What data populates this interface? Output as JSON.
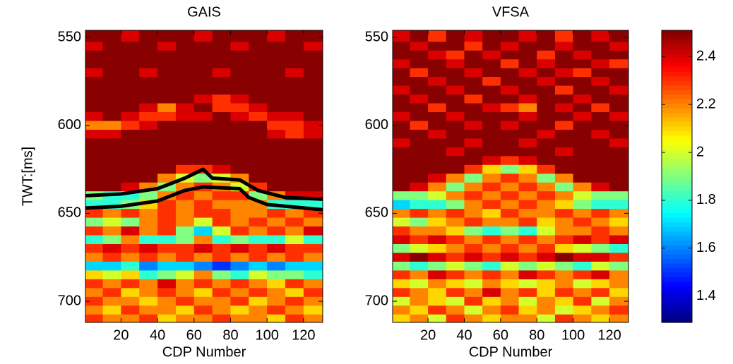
{
  "chart_data": [
    {
      "type": "heatmap",
      "title": "GAIS",
      "ylabel": "TWT:[ms]",
      "xlabel": "CDP Number",
      "colormap": "jet",
      "clim": [
        1.29,
        2.51
      ],
      "xlim": [
        0.5,
        130.5
      ],
      "ylim": [
        546,
        712
      ],
      "yreverse": true,
      "xticks": [
        20,
        40,
        60,
        80,
        100,
        120
      ],
      "yticks": [
        550,
        600,
        650,
        700
      ],
      "x": [
        5,
        15,
        25,
        35,
        45,
        55,
        65,
        75,
        85,
        95,
        105,
        115,
        125
      ],
      "y": [
        550,
        555,
        560,
        565,
        570,
        575,
        580,
        585,
        590,
        595,
        600,
        605,
        610,
        615,
        620,
        625,
        630,
        635,
        640,
        645,
        650,
        655,
        660,
        665,
        670,
        675,
        680,
        685,
        690,
        695,
        700,
        705,
        710
      ],
      "z": [
        [
          2.5,
          2.5,
          2.4,
          2.5,
          2.5,
          2.5,
          2.4,
          2.5,
          2.5,
          2.5,
          2.4,
          2.5,
          2.5
        ],
        [
          2.4,
          2.5,
          2.5,
          2.5,
          2.4,
          2.5,
          2.5,
          2.5,
          2.4,
          2.5,
          2.5,
          2.5,
          2.4
        ],
        [
          2.5,
          2.5,
          2.5,
          2.5,
          2.5,
          2.5,
          2.5,
          2.5,
          2.5,
          2.5,
          2.5,
          2.5,
          2.5
        ],
        [
          2.5,
          2.5,
          2.5,
          2.5,
          2.5,
          2.5,
          2.5,
          2.5,
          2.5,
          2.5,
          2.5,
          2.5,
          2.5
        ],
        [
          2.4,
          2.5,
          2.5,
          2.4,
          2.5,
          2.5,
          2.5,
          2.4,
          2.5,
          2.5,
          2.5,
          2.4,
          2.5
        ],
        [
          2.5,
          2.5,
          2.5,
          2.5,
          2.5,
          2.5,
          2.5,
          2.5,
          2.5,
          2.5,
          2.5,
          2.5,
          2.5
        ],
        [
          2.5,
          2.5,
          2.5,
          2.5,
          2.5,
          2.5,
          2.5,
          2.5,
          2.5,
          2.5,
          2.5,
          2.5,
          2.5
        ],
        [
          2.5,
          2.5,
          2.5,
          2.5,
          2.5,
          2.5,
          2.4,
          2.3,
          2.4,
          2.5,
          2.5,
          2.5,
          2.5
        ],
        [
          2.5,
          2.5,
          2.5,
          2.4,
          2.2,
          2.4,
          2.5,
          2.3,
          2.3,
          2.4,
          2.5,
          2.5,
          2.5
        ],
        [
          2.4,
          2.5,
          2.4,
          2.3,
          2.3,
          2.4,
          2.4,
          2.5,
          2.4,
          2.3,
          2.4,
          2.4,
          2.5
        ],
        [
          2.2,
          2.2,
          2.3,
          2.4,
          2.5,
          2.5,
          2.5,
          2.5,
          2.5,
          2.5,
          2.3,
          2.3,
          2.4
        ],
        [
          2.4,
          2.4,
          2.5,
          2.5,
          2.5,
          2.5,
          2.5,
          2.5,
          2.5,
          2.5,
          2.4,
          2.3,
          2.4
        ],
        [
          2.5,
          2.5,
          2.5,
          2.5,
          2.5,
          2.5,
          2.5,
          2.5,
          2.5,
          2.5,
          2.5,
          2.5,
          2.5
        ],
        [
          2.5,
          2.5,
          2.5,
          2.5,
          2.5,
          2.5,
          2.5,
          2.5,
          2.5,
          2.5,
          2.5,
          2.5,
          2.5
        ],
        [
          2.5,
          2.5,
          2.5,
          2.5,
          2.5,
          2.5,
          2.5,
          2.5,
          2.5,
          2.5,
          2.5,
          2.5,
          2.5
        ],
        [
          2.5,
          2.5,
          2.5,
          2.5,
          2.5,
          2.3,
          2.3,
          2.4,
          2.5,
          2.5,
          2.5,
          2.5,
          2.5
        ],
        [
          2.5,
          2.5,
          2.5,
          2.5,
          2.2,
          2.0,
          1.9,
          2.0,
          2.2,
          2.5,
          2.5,
          2.5,
          2.5
        ],
        [
          2.5,
          2.5,
          2.4,
          2.2,
          1.9,
          2.2,
          2.3,
          2.2,
          2.0,
          2.3,
          2.5,
          2.5,
          2.5
        ],
        [
          1.9,
          1.8,
          1.8,
          1.9,
          2.2,
          2.3,
          2.2,
          2.3,
          2.3,
          1.9,
          2.2,
          2.4,
          2.4
        ],
        [
          1.8,
          1.8,
          1.9,
          2.1,
          2.3,
          2.2,
          2.3,
          2.2,
          2.2,
          2.2,
          1.8,
          1.8,
          1.8
        ],
        [
          2.3,
          2.2,
          2.3,
          2.2,
          2.3,
          2.2,
          2.3,
          2.3,
          2.2,
          2.2,
          2.3,
          2.2,
          2.3
        ],
        [
          1.9,
          2.0,
          1.9,
          2.2,
          2.3,
          2.2,
          2.0,
          2.3,
          2.2,
          2.3,
          2.2,
          2.3,
          2.2
        ],
        [
          2.3,
          2.2,
          2.4,
          2.2,
          2.3,
          1.9,
          1.7,
          2.0,
          2.3,
          2.2,
          2.3,
          2.2,
          2.4
        ],
        [
          1.8,
          1.9,
          2.2,
          1.8,
          1.8,
          1.9,
          2.2,
          1.8,
          1.9,
          1.8,
          1.8,
          2.0,
          1.8
        ],
        [
          2.3,
          2.4,
          2.3,
          2.4,
          2.3,
          2.3,
          2.4,
          2.3,
          2.4,
          2.3,
          2.4,
          2.3,
          2.3
        ],
        [
          2.2,
          2.3,
          2.2,
          2.3,
          2.2,
          2.3,
          2.2,
          2.3,
          2.2,
          2.3,
          2.2,
          2.3,
          2.2
        ],
        [
          1.7,
          1.7,
          1.8,
          1.6,
          1.7,
          1.7,
          1.6,
          1.5,
          1.6,
          1.7,
          1.6,
          1.7,
          1.7
        ],
        [
          2.1,
          2.0,
          2.1,
          1.8,
          1.9,
          2.0,
          2.2,
          1.9,
          1.8,
          2.0,
          1.9,
          1.9,
          1.8
        ],
        [
          2.3,
          2.2,
          2.3,
          2.2,
          2.4,
          2.2,
          2.3,
          2.2,
          2.3,
          2.2,
          2.1,
          2.3,
          2.2
        ],
        [
          2.2,
          2.3,
          2.1,
          2.2,
          2.3,
          2.2,
          2.1,
          2.3,
          2.2,
          2.3,
          2.2,
          2.1,
          2.3
        ],
        [
          2.3,
          2.2,
          2.2,
          2.1,
          2.2,
          2.3,
          2.2,
          2.2,
          2.3,
          2.1,
          2.2,
          2.3,
          2.2
        ],
        [
          2.2,
          2.1,
          2.3,
          2.2,
          2.2,
          2.1,
          2.3,
          2.2,
          2.1,
          2.2,
          2.3,
          2.2,
          2.1
        ],
        [
          2.3,
          2.2,
          2.2,
          2.3,
          2.1,
          2.2,
          2.2,
          2.3,
          2.2,
          2.2,
          2.1,
          2.3,
          2.2
        ]
      ],
      "lines": [
        {
          "color": "#000000",
          "x": [
            0.5,
            20,
            40,
            55,
            65,
            70,
            85,
            95,
            110,
            130.5
          ],
          "y": [
            640,
            639,
            636,
            630,
            625,
            630,
            631,
            637,
            641,
            642
          ]
        },
        {
          "color": "#000000",
          "x": [
            0.5,
            20,
            40,
            55,
            65,
            85,
            90,
            100,
            130.5
          ],
          "y": [
            647,
            646,
            643,
            637,
            635,
            636,
            641,
            645,
            648
          ]
        }
      ]
    },
    {
      "type": "heatmap",
      "title": "VFSA",
      "xlabel": "CDP Number",
      "colormap": "jet",
      "clim": [
        1.29,
        2.51
      ],
      "xlim": [
        0.5,
        130.5
      ],
      "ylim": [
        546,
        712
      ],
      "yreverse": true,
      "xticks": [
        20,
        40,
        60,
        80,
        100,
        120
      ],
      "yticks": [
        550,
        600,
        650,
        700
      ],
      "x": [
        5,
        15,
        25,
        35,
        45,
        55,
        65,
        75,
        85,
        95,
        105,
        115,
        125
      ],
      "y": [
        550,
        555,
        560,
        565,
        570,
        575,
        580,
        585,
        590,
        595,
        600,
        605,
        610,
        615,
        620,
        625,
        630,
        635,
        640,
        645,
        650,
        655,
        660,
        665,
        670,
        675,
        680,
        685,
        690,
        695,
        700,
        705,
        710
      ],
      "z": [
        [
          2.4,
          2.5,
          2.3,
          2.5,
          2.4,
          2.5,
          2.5,
          2.4,
          2.5,
          2.3,
          2.5,
          2.4,
          2.5
        ],
        [
          2.5,
          2.4,
          2.5,
          2.5,
          2.3,
          2.5,
          2.4,
          2.5,
          2.5,
          2.4,
          2.5,
          2.5,
          2.4
        ],
        [
          2.5,
          2.5,
          2.4,
          2.3,
          2.5,
          2.4,
          2.5,
          2.5,
          2.3,
          2.5,
          2.4,
          2.5,
          2.5
        ],
        [
          2.4,
          2.5,
          2.5,
          2.4,
          2.5,
          2.5,
          2.3,
          2.5,
          2.4,
          2.5,
          2.5,
          2.4,
          2.3
        ],
        [
          2.5,
          2.3,
          2.5,
          2.5,
          2.4,
          2.5,
          2.5,
          2.4,
          2.5,
          2.4,
          2.3,
          2.5,
          2.5
        ],
        [
          2.5,
          2.5,
          2.4,
          2.5,
          2.5,
          2.3,
          2.5,
          2.5,
          2.4,
          2.5,
          2.5,
          2.4,
          2.5
        ],
        [
          2.4,
          2.5,
          2.5,
          2.4,
          2.5,
          2.5,
          2.4,
          2.5,
          2.5,
          2.3,
          2.5,
          2.5,
          2.4
        ],
        [
          2.5,
          2.4,
          2.5,
          2.5,
          2.3,
          2.5,
          2.5,
          2.4,
          2.5,
          2.5,
          2.4,
          2.5,
          2.5
        ],
        [
          2.5,
          2.5,
          2.3,
          2.5,
          2.5,
          2.4,
          2.3,
          2.2,
          2.5,
          2.4,
          2.5,
          2.3,
          2.5
        ],
        [
          2.4,
          2.5,
          2.5,
          2.4,
          2.5,
          2.5,
          2.5,
          2.4,
          2.5,
          2.5,
          2.4,
          2.5,
          2.4
        ],
        [
          2.5,
          2.3,
          2.5,
          2.5,
          2.4,
          2.5,
          2.4,
          2.5,
          2.5,
          2.3,
          2.5,
          2.5,
          2.5
        ],
        [
          2.5,
          2.5,
          2.4,
          2.5,
          2.5,
          2.5,
          2.5,
          2.5,
          2.4,
          2.5,
          2.5,
          2.4,
          2.5
        ],
        [
          2.4,
          2.5,
          2.5,
          2.5,
          2.4,
          2.5,
          2.5,
          2.4,
          2.5,
          2.5,
          2.5,
          2.5,
          2.4
        ],
        [
          2.5,
          2.5,
          2.5,
          2.4,
          2.5,
          2.5,
          2.5,
          2.5,
          2.5,
          2.4,
          2.5,
          2.5,
          2.5
        ],
        [
          2.5,
          2.5,
          2.5,
          2.5,
          2.5,
          2.4,
          2.3,
          2.4,
          2.5,
          2.5,
          2.5,
          2.5,
          2.5
        ],
        [
          2.5,
          2.5,
          2.5,
          2.5,
          2.3,
          2.1,
          1.9,
          2.1,
          2.3,
          2.5,
          2.5,
          2.5,
          2.5
        ],
        [
          2.5,
          2.5,
          2.4,
          2.2,
          1.9,
          2.2,
          2.3,
          2.2,
          1.9,
          2.2,
          2.5,
          2.5,
          2.5
        ],
        [
          2.5,
          2.4,
          2.2,
          1.9,
          2.2,
          2.3,
          2.2,
          2.3,
          2.2,
          1.9,
          2.2,
          2.4,
          2.5
        ],
        [
          1.9,
          1.9,
          2.0,
          2.2,
          2.3,
          2.2,
          2.3,
          2.2,
          2.3,
          2.2,
          2.0,
          1.9,
          1.9
        ],
        [
          1.7,
          1.8,
          1.8,
          1.9,
          2.2,
          2.3,
          2.2,
          2.3,
          2.2,
          2.1,
          1.9,
          1.8,
          1.8
        ],
        [
          2.2,
          2.3,
          2.2,
          2.3,
          2.2,
          2.1,
          2.3,
          2.2,
          2.2,
          2.3,
          2.2,
          2.3,
          2.2
        ],
        [
          2.0,
          1.9,
          2.1,
          2.2,
          2.3,
          2.2,
          2.2,
          2.3,
          2.1,
          2.2,
          2.3,
          2.2,
          2.1
        ],
        [
          2.3,
          2.2,
          2.2,
          2.1,
          1.9,
          1.8,
          1.9,
          1.8,
          2.0,
          2.2,
          2.2,
          2.3,
          2.2
        ],
        [
          2.4,
          2.3,
          2.4,
          2.3,
          2.2,
          2.3,
          2.2,
          2.3,
          2.2,
          2.3,
          2.4,
          2.3,
          2.4
        ],
        [
          1.9,
          2.0,
          2.1,
          2.2,
          2.3,
          2.2,
          2.3,
          2.2,
          2.3,
          2.1,
          2.0,
          1.9,
          1.8
        ],
        [
          2.4,
          2.5,
          2.4,
          2.3,
          2.4,
          2.3,
          2.4,
          2.3,
          2.4,
          2.5,
          2.4,
          2.4,
          2.3
        ],
        [
          1.9,
          1.8,
          1.9,
          2.0,
          1.9,
          1.8,
          2.0,
          1.9,
          2.0,
          1.9,
          1.8,
          2.0,
          1.9
        ],
        [
          2.3,
          2.2,
          2.4,
          2.3,
          2.2,
          2.3,
          2.2,
          2.4,
          2.3,
          2.2,
          2.3,
          2.4,
          2.2
        ],
        [
          2.1,
          2.0,
          2.2,
          2.1,
          2.0,
          2.2,
          2.1,
          2.0,
          2.1,
          2.2,
          2.0,
          2.1,
          2.2
        ],
        [
          2.3,
          2.2,
          2.1,
          2.3,
          2.2,
          2.4,
          2.2,
          2.3,
          2.1,
          2.3,
          2.2,
          2.3,
          2.1
        ],
        [
          2.0,
          2.2,
          2.1,
          2.0,
          2.3,
          2.1,
          2.2,
          2.0,
          2.2,
          2.1,
          2.3,
          2.0,
          2.2
        ],
        [
          2.2,
          2.1,
          2.3,
          2.2,
          2.0,
          2.2,
          2.3,
          2.1,
          2.2,
          2.0,
          2.1,
          2.2,
          2.3
        ],
        [
          2.1,
          2.2,
          2.0,
          2.3,
          2.2,
          2.1,
          2.2,
          2.2,
          2.0,
          2.3,
          2.2,
          2.1,
          2.2
        ]
      ],
      "colorbar": {
        "ticks": [
          1.4,
          1.6,
          1.8,
          2,
          2.2,
          2.4
        ]
      }
    }
  ]
}
